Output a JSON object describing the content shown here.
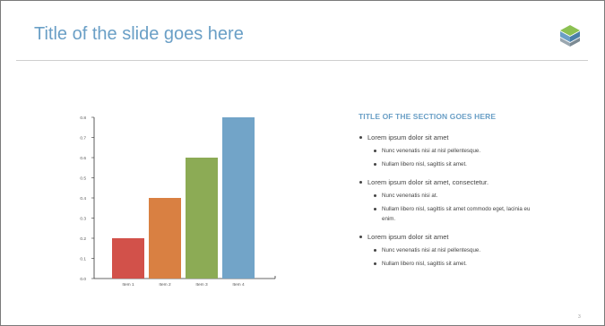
{
  "slide": {
    "title": "Title of the slide goes here",
    "logo_icon": "hexagon-cube-logo-icon",
    "page_number": "3"
  },
  "colors": {
    "title": "#6a9fc6",
    "rule": "#cfcfcf",
    "bar_1": "#d2514a",
    "bar_2": "#d98042",
    "bar_3": "#8cab55",
    "bar_4": "#72a4c8"
  },
  "chart_data": {
    "type": "bar",
    "categories": [
      "Item 1",
      "Item 2",
      "Item 3",
      "Item 4"
    ],
    "values": [
      0.2,
      0.4,
      0.6,
      0.8
    ],
    "colors": [
      "#d2514a",
      "#d98042",
      "#8cab55",
      "#72a4c8"
    ],
    "yticks": [
      "0.0",
      "0.1",
      "0.2",
      "0.3",
      "0.4",
      "0.5",
      "0.6",
      "0.7",
      "0.8"
    ],
    "ylim": [
      0,
      0.8
    ],
    "title": "",
    "xlabel": "",
    "ylabel": "",
    "grid": false
  },
  "section": {
    "title": "TITLE OF THE SECTION GOES HERE",
    "groups": [
      {
        "label": "Lorem ipsum dolor sit amet",
        "items": [
          "Nunc venenatis nisi at nisl pellentesque.",
          "Nullam libero nisl, sagittis sit amet."
        ]
      },
      {
        "label": "Lorem ipsum dolor sit amet, consectetur.",
        "items": [
          "Nunc venenatis nisi at.",
          "Nullam libero nisl, sagittis sit amet commodo eget, lacinia eu enim."
        ]
      },
      {
        "label": "Lorem ipsum dolor sit amet",
        "items": [
          "Nunc venenatis nisi at nisl pellentesque.",
          "Nullam libero nisl, sagittis sit amet."
        ]
      }
    ]
  }
}
